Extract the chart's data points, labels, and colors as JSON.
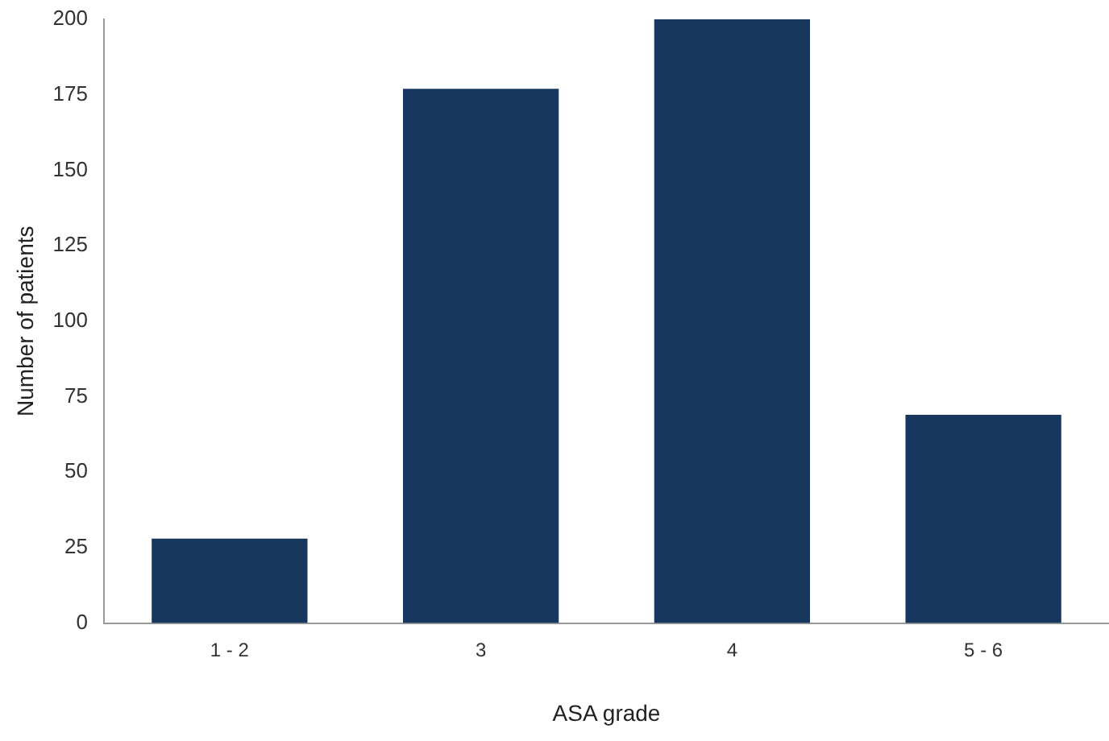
{
  "chart_data": {
    "type": "bar",
    "xlabel": "ASA grade",
    "ylabel": "Number of patients",
    "categories": [
      "1 - 2",
      "3",
      "4",
      "5 - 6"
    ],
    "values": [
      28,
      177,
      200,
      69
    ],
    "color": "#17375e",
    "ylim": [
      0,
      200
    ],
    "yticks": [
      0,
      25,
      50,
      75,
      100,
      125,
      150,
      175,
      200
    ],
    "grid": false,
    "legend": false
  }
}
